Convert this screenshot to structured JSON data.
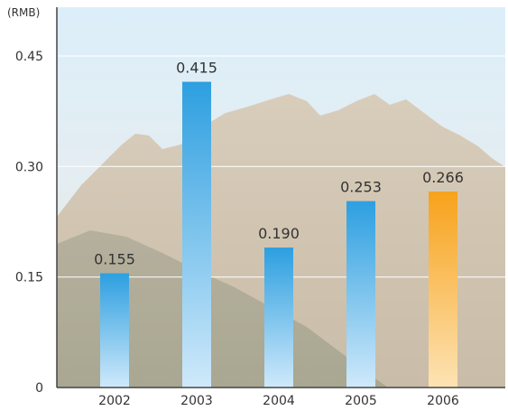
{
  "chart_data": {
    "type": "bar",
    "unit": "(RMB)",
    "categories": [
      "2002",
      "2003",
      "2004",
      "2005",
      "2006"
    ],
    "values": [
      0.155,
      0.415,
      0.19,
      0.253,
      0.266
    ],
    "value_labels": [
      "0.155",
      "0.415",
      "0.190",
      "0.253",
      "0.266"
    ],
    "yticks": [
      0,
      0.15,
      0.3,
      0.45
    ],
    "ytick_labels": [
      "0",
      "0.15",
      "0.30",
      "0.45"
    ],
    "ylim": [
      0,
      0.45
    ],
    "grid": true,
    "highlight_index": 4,
    "colors": {
      "bar_top": "#2d9fe0",
      "bar_bottom": "#cfe9fa",
      "highlight_top": "#f7a21b",
      "highlight_bottom": "#fde3b4",
      "axis": "#444444",
      "grid": "#ffffff"
    }
  }
}
